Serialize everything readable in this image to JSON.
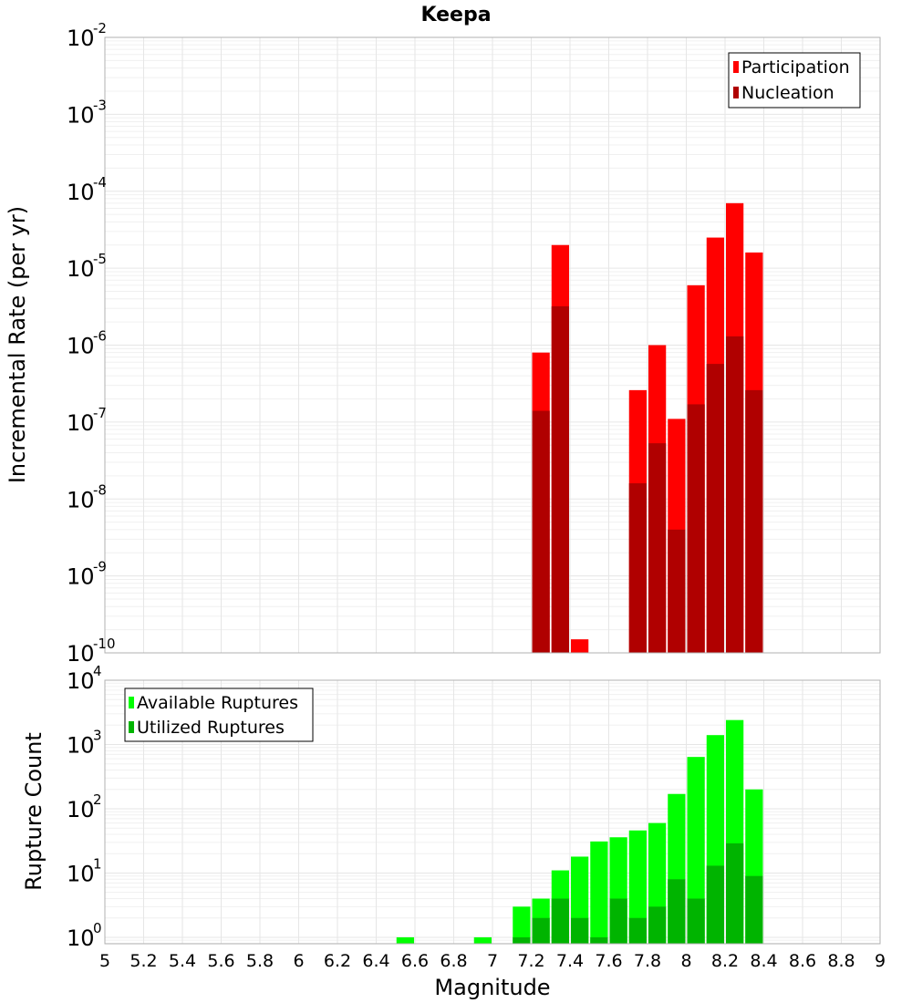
{
  "chart_data": [
    {
      "type": "bar",
      "title": "Keepa",
      "xlabel": "Magnitude",
      "ylabel": "Incremental Rate (per yr)",
      "yscale": "log",
      "ylim_exp": [
        -10,
        -2
      ],
      "xlim": [
        5,
        9
      ],
      "bin_width": 0.1,
      "legend_position": "top-right",
      "series": [
        {
          "name": "Participation",
          "color": "#ff0000",
          "points": [
            {
              "x": 7.25,
              "y": 8e-07
            },
            {
              "x": 7.35,
              "y": 2e-05
            },
            {
              "x": 7.45,
              "y": 1.5e-10
            },
            {
              "x": 7.75,
              "y": 2.6e-07
            },
            {
              "x": 7.85,
              "y": 1e-06
            },
            {
              "x": 7.95,
              "y": 1.1e-07
            },
            {
              "x": 8.05,
              "y": 6e-06
            },
            {
              "x": 8.15,
              "y": 2.5e-05
            },
            {
              "x": 8.25,
              "y": 7e-05
            },
            {
              "x": 8.35,
              "y": 1.6e-05
            }
          ]
        },
        {
          "name": "Nucleation",
          "color": "#b00000",
          "points": [
            {
              "x": 7.25,
              "y": 1.4e-07
            },
            {
              "x": 7.35,
              "y": 3.2e-06
            },
            {
              "x": 7.75,
              "y": 1.6e-08
            },
            {
              "x": 7.85,
              "y": 5.3e-08
            },
            {
              "x": 7.95,
              "y": 4e-09
            },
            {
              "x": 8.05,
              "y": 1.7e-07
            },
            {
              "x": 8.15,
              "y": 5.7e-07
            },
            {
              "x": 8.25,
              "y": 1.3e-06
            },
            {
              "x": 8.35,
              "y": 2.6e-07
            }
          ]
        }
      ]
    },
    {
      "type": "bar",
      "title": "",
      "xlabel": "Magnitude",
      "ylabel": "Rupture Count",
      "yscale": "log",
      "ylim_exp": [
        -0.1,
        4
      ],
      "xlim": [
        5,
        9
      ],
      "bin_width": 0.1,
      "legend_position": "top-left",
      "x_ticks": [
        "5",
        "5.2",
        "5.4",
        "5.6",
        "5.8",
        "6",
        "6.2",
        "6.4",
        "6.6",
        "6.8",
        "7",
        "7.2",
        "7.4",
        "7.6",
        "7.8",
        "8",
        "8.2",
        "8.4",
        "8.6",
        "8.8",
        "9"
      ],
      "series": [
        {
          "name": "Available Ruptures",
          "color": "#00ff00",
          "points": [
            {
              "x": 6.55,
              "y": 1
            },
            {
              "x": 6.95,
              "y": 1
            },
            {
              "x": 7.15,
              "y": 3
            },
            {
              "x": 7.25,
              "y": 4
            },
            {
              "x": 7.35,
              "y": 11
            },
            {
              "x": 7.45,
              "y": 18
            },
            {
              "x": 7.55,
              "y": 31
            },
            {
              "x": 7.65,
              "y": 36
            },
            {
              "x": 7.75,
              "y": 46
            },
            {
              "x": 7.85,
              "y": 60
            },
            {
              "x": 7.95,
              "y": 170
            },
            {
              "x": 8.05,
              "y": 640
            },
            {
              "x": 8.15,
              "y": 1400
            },
            {
              "x": 8.25,
              "y": 2400
            },
            {
              "x": 8.35,
              "y": 200
            }
          ]
        },
        {
          "name": "Utilized Ruptures",
          "color": "#00b400",
          "points": [
            {
              "x": 7.15,
              "y": 1
            },
            {
              "x": 7.25,
              "y": 2
            },
            {
              "x": 7.35,
              "y": 4
            },
            {
              "x": 7.45,
              "y": 2
            },
            {
              "x": 7.55,
              "y": 1
            },
            {
              "x": 7.65,
              "y": 4
            },
            {
              "x": 7.75,
              "y": 2
            },
            {
              "x": 7.85,
              "y": 3
            },
            {
              "x": 7.95,
              "y": 8
            },
            {
              "x": 8.05,
              "y": 4
            },
            {
              "x": 8.15,
              "y": 13
            },
            {
              "x": 8.25,
              "y": 29
            },
            {
              "x": 8.35,
              "y": 9
            }
          ]
        }
      ]
    }
  ]
}
